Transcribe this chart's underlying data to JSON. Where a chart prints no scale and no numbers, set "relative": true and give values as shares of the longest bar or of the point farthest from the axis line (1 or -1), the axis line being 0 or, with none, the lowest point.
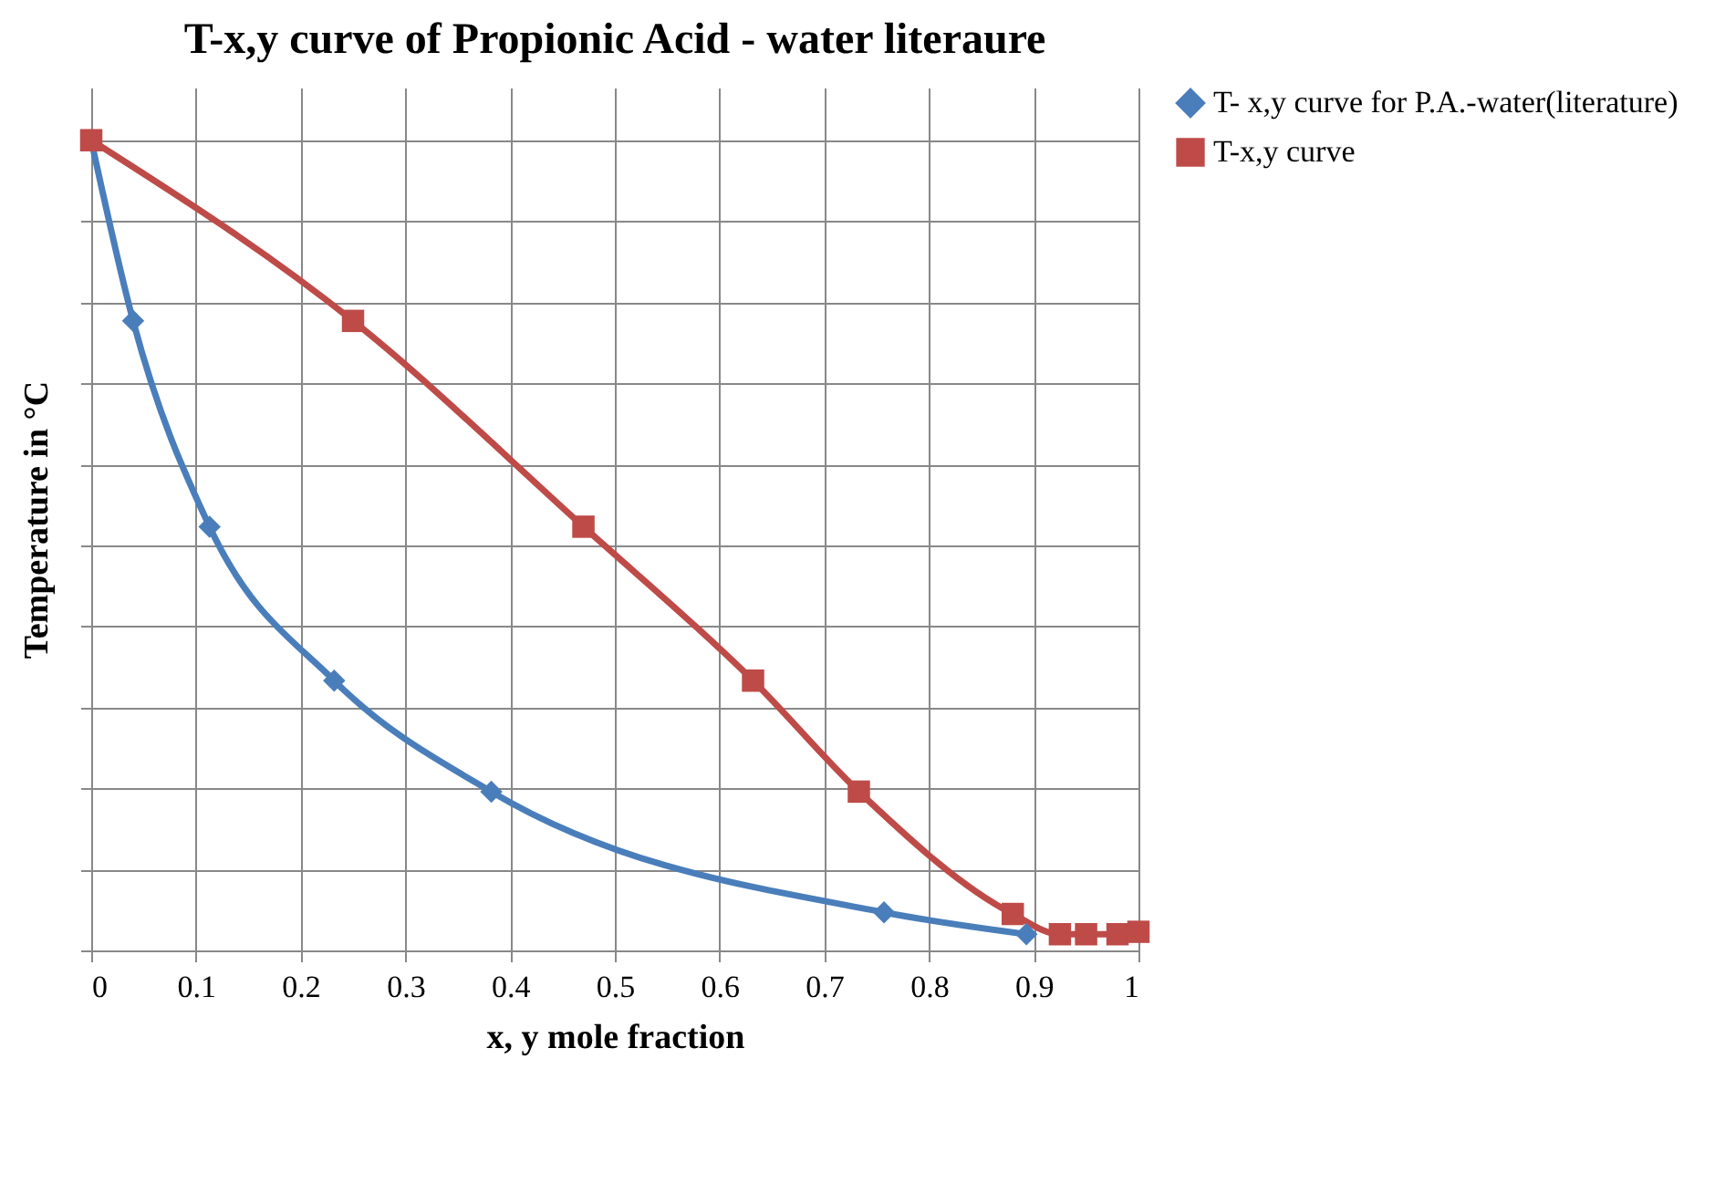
{
  "chart_data": {
    "type": "line",
    "title": "T-x,y curve of Propionic Acid - water literaure",
    "xlabel": "x, y mole fraction",
    "ylabel": "Temperature in °C",
    "relative": true,
    "xlim": [
      0,
      1
    ],
    "xticks": [
      0,
      0.1,
      0.2,
      0.3,
      0.4,
      0.5,
      0.6,
      0.7,
      0.8,
      0.9,
      1
    ],
    "grid": true,
    "legend": "right",
    "line_style": "solid",
    "series": [
      {
        "name": "T- x,y curve for P.A.-water(literature)",
        "color": "#4a7ebb",
        "marker": "diamond",
        "x": [
          0,
          0.04,
          0.113,
          0.232,
          0.382,
          0.757,
          0.893
        ],
        "values": [
          1,
          0.777,
          0.523,
          0.333,
          0.196,
          0.047,
          0.02
        ]
      },
      {
        "name": "T-x,y curve",
        "color": "#be4b48",
        "marker": "square",
        "x": [
          0,
          0.25,
          0.47,
          0.632,
          0.733,
          0.88,
          0.925,
          0.95,
          0.98,
          1
        ],
        "values": [
          1,
          0.777,
          0.523,
          0.333,
          0.196,
          0.045,
          0.02,
          0.02,
          0.02,
          0.023
        ]
      }
    ]
  }
}
